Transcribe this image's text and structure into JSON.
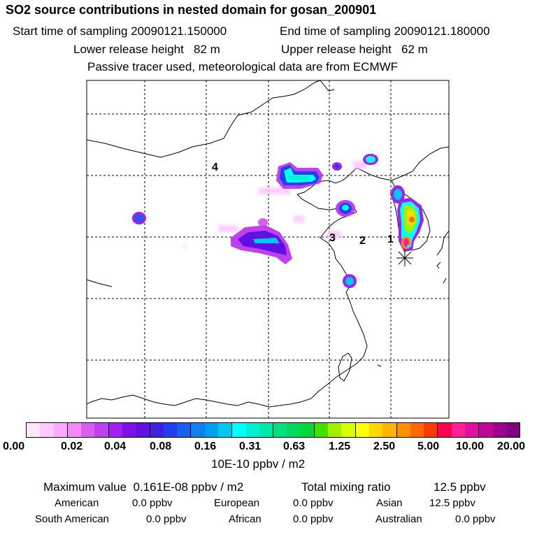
{
  "header": {
    "title": "SO2 source contributions in nested domain for gosan_200901",
    "start_label": "Start time of sampling 20090121.150000",
    "end_label": "End time of sampling 20090121.180000",
    "lower_label": "Lower release height   82 m",
    "upper_label": "Upper release height   62 m",
    "tracer_label": "Passive tracer used, meteorological data are from ECMWF"
  },
  "map": {
    "region_labels": [
      "4",
      "3",
      "2",
      "1"
    ]
  },
  "colorbar": {
    "tick_labels": [
      "0.00",
      "0.02",
      "0.04",
      "0.08",
      "0.16",
      "0.31",
      "0.63",
      "1.25",
      "2.50",
      "5.00",
      "10.00",
      "20.00"
    ],
    "colors": [
      "#ffe8ff",
      "#ffc8ff",
      "#ffa8ff",
      "#f488f4",
      "#d860f0",
      "#c040f0",
      "#a020f0",
      "#8010e8",
      "#6010e0",
      "#4020e0",
      "#2040f0",
      "#1860f0",
      "#1080f0",
      "#00a0f0",
      "#00c8f0",
      "#00ffff",
      "#00f0d0",
      "#00e8a8",
      "#00e080",
      "#00d860",
      "#00d838",
      "#40e000",
      "#a0f000",
      "#d8ff00",
      "#ffff00",
      "#ffd800",
      "#ffb400",
      "#ff9000",
      "#ff6800",
      "#ff3800",
      "#ff0050",
      "#ff2098",
      "#e010a0",
      "#c00898",
      "#a00090",
      "#800080"
    ],
    "unit": "10E-10 ppbv / m2"
  },
  "summary": {
    "max_label": "Maximum value  0.161E-08 ppbv / m2",
    "total_label": "Total mixing ratio",
    "total_value": "12.5 ppbv",
    "rows": [
      {
        "name": "American",
        "value": "0.0 ppbv"
      },
      {
        "name": "European",
        "value": "0.0 ppbv"
      },
      {
        "name": "Asian",
        "value": "12.5 ppbv"
      },
      {
        "name": "South American",
        "value": "0.0 ppbv"
      },
      {
        "name": "African",
        "value": "0.0 ppbv"
      },
      {
        "name": "Australian",
        "value": "0.0 ppbv"
      }
    ]
  }
}
